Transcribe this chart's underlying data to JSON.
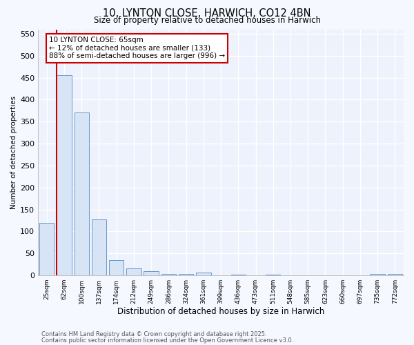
{
  "title1": "10, LYNTON CLOSE, HARWICH, CO12 4BN",
  "title2": "Size of property relative to detached houses in Harwich",
  "xlabel": "Distribution of detached houses by size in Harwich",
  "ylabel": "Number of detached properties",
  "categories": [
    "25sqm",
    "62sqm",
    "100sqm",
    "137sqm",
    "174sqm",
    "212sqm",
    "249sqm",
    "286sqm",
    "324sqm",
    "361sqm",
    "399sqm",
    "436sqm",
    "473sqm",
    "511sqm",
    "548sqm",
    "585sqm",
    "623sqm",
    "660sqm",
    "697sqm",
    "735sqm",
    "772sqm"
  ],
  "values": [
    120,
    455,
    370,
    128,
    35,
    16,
    10,
    4,
    4,
    6,
    0,
    2,
    0,
    2,
    0,
    0,
    0,
    0,
    0,
    4,
    4
  ],
  "bar_color": "#d6e4f5",
  "bar_edge_color": "#6699cc",
  "red_line_x": 1,
  "annotation_text": "10 LYNTON CLOSE: 65sqm\n← 12% of detached houses are smaller (133)\n88% of semi-detached houses are larger (996) →",
  "annotation_box_color": "#ffffff",
  "annotation_box_edge": "#cc0000",
  "ylim": [
    0,
    560
  ],
  "yticks": [
    0,
    50,
    100,
    150,
    200,
    250,
    300,
    350,
    400,
    450,
    500,
    550
  ],
  "footer1": "Contains HM Land Registry data © Crown copyright and database right 2025.",
  "footer2": "Contains public sector information licensed under the Open Government Licence v3.0.",
  "bg_color": "#f5f8ff",
  "plot_bg_color": "#eef2fc",
  "grid_color": "#ffffff"
}
